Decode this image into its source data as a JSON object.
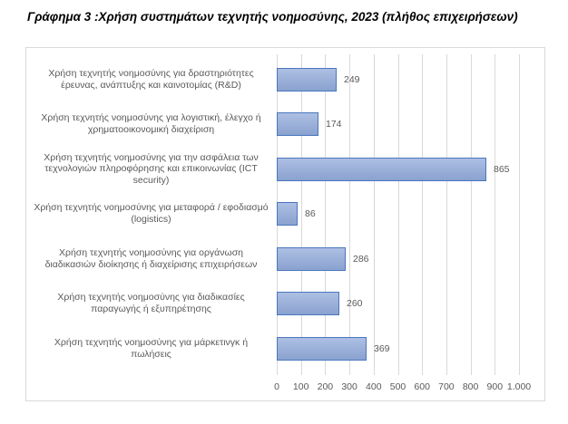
{
  "title": "Γράφημα 3 :Χρήση συστημάτων τεχνητής νοημοσύνης, 2023 (πλήθος επιχειρήσεων)",
  "chart_data": {
    "type": "bar",
    "orientation": "horizontal",
    "title": "Γράφημα 3 :Χρήση συστημάτων τεχνητής νοημοσύνης, 2023 (πλήθος επιχειρήσεων)",
    "categories": [
      "Χρήση τεχνητής νοημοσύνης για δραστηριότητες έρευνας, ανάπτυξης και καινοτομίας (R&D)",
      "Χρήση τεχνητής νοημοσύνης για λογιστική, έλεγχο ή χρηματοοικονομική διαχείριση",
      "Χρήση τεχνητής νοημοσύνης για την ασφάλεια των τεχνολογιών πληροφόρησης και επικοινωνίας (ICT security)",
      "Χρήση τεχνητής νοημοσύνης για μεταφορά / εφοδιασμό (logistics)",
      "Χρήση τεχνητής νοημοσύνης για οργάνωση διαδικασιών διοίκησης ή διαχείρισης  επιχειρήσεων",
      "Χρήση τεχνητής νοημοσύνης για διαδικασίες παραγωγής ή εξυπηρέτησης",
      "Χρήση τεχνητής νοημοσύνης για μάρκετινγκ ή πωλήσεις"
    ],
    "values": [
      249,
      174,
      865,
      86,
      286,
      260,
      369
    ],
    "value_labels": [
      "249",
      "174",
      "865",
      "86",
      "286",
      "260",
      "369"
    ],
    "xlabel": "",
    "ylabel": "",
    "xlim": [
      0,
      1000
    ],
    "x_ticks": [
      0,
      100,
      200,
      300,
      400,
      500,
      600,
      700,
      800,
      900,
      1000
    ],
    "x_tick_labels": [
      "0",
      "100",
      "200",
      "300",
      "400",
      "500",
      "600",
      "700",
      "800",
      "900",
      "1.000"
    ],
    "grid": "vertical-major",
    "legend": "none",
    "colors": {
      "bar_fill": "#94ABD8",
      "bar_border": "#4A77BE",
      "gridline": "#D9D9D9",
      "frame_border": "#D9D9D9",
      "label_text": "#595959",
      "title_text": "#000000"
    }
  }
}
